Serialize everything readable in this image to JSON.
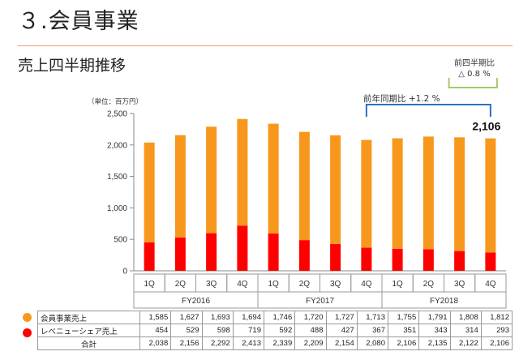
{
  "header": {
    "slide_title": "３.会員事業",
    "section_title": "売上四半期推移"
  },
  "chart_data": {
    "type": "bar",
    "stacked": true,
    "unit_label": "（単位：百万円）",
    "ylim": [
      0,
      2500
    ],
    "yticks": [
      "0",
      "500",
      "1,000",
      "1,500",
      "2,000",
      "2,500"
    ],
    "categories": [
      "1Q",
      "2Q",
      "3Q",
      "4Q",
      "1Q",
      "2Q",
      "3Q",
      "4Q",
      "1Q",
      "2Q",
      "3Q",
      "4Q"
    ],
    "groups": [
      {
        "label": "FY2016",
        "start": 0,
        "end": 3
      },
      {
        "label": "FY2017",
        "start": 4,
        "end": 7
      },
      {
        "label": "FY2018",
        "start": 8,
        "end": 11
      }
    ],
    "series": [
      {
        "name": "レベニューシェア売上",
        "color": "#ff0000",
        "values": [
          454,
          529,
          598,
          719,
          592,
          488,
          427,
          367,
          351,
          343,
          314,
          293
        ]
      },
      {
        "name": "会員事業売上",
        "color": "#f7981d",
        "values": [
          1585,
          1627,
          1693,
          1694,
          1746,
          1720,
          1727,
          1713,
          1755,
          1791,
          1808,
          1812
        ]
      }
    ],
    "totals": [
      2038,
      2156,
      2292,
      2413,
      2339,
      2209,
      2154,
      2080,
      2106,
      2135,
      2122,
      2106
    ],
    "last_total_label": "2,106",
    "annotations": [
      {
        "text": "前年同期比 +1.2 %",
        "from": 7,
        "to": 11,
        "color": "#2f6fbf"
      },
      {
        "text": "前四半期比",
        "text2": "△ 0.8 %",
        "from": 10,
        "to": 11,
        "color": "#a8c86a"
      }
    ]
  },
  "table": {
    "rows": [
      {
        "label": "会員事業売上",
        "dot_color": "#f7981d",
        "values": [
          "1,585",
          "1,627",
          "1,693",
          "1,694",
          "1,746",
          "1,720",
          "1,727",
          "1,713",
          "1,755",
          "1,791",
          "1,808",
          "1,812"
        ]
      },
      {
        "label": "レベニューシェア売上",
        "dot_color": "#ff0000",
        "values": [
          "454",
          "529",
          "598",
          "719",
          "592",
          "488",
          "427",
          "367",
          "351",
          "343",
          "314",
          "293"
        ]
      },
      {
        "label": "合計",
        "values": [
          "2,038",
          "2,156",
          "2,292",
          "2,413",
          "2,339",
          "2,209",
          "2,154",
          "2,080",
          "2,106",
          "2,135",
          "2,122",
          "2,106"
        ]
      }
    ]
  }
}
